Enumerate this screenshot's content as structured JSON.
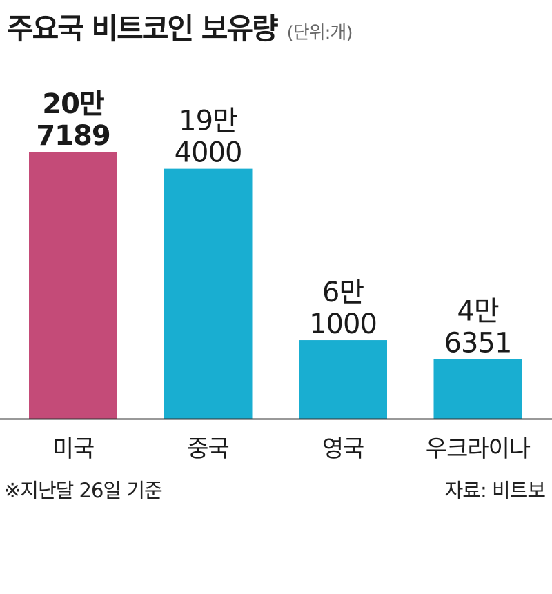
{
  "chart_data": {
    "type": "bar",
    "title": "주요국 비트코인 보유량",
    "unit_label": "(단위:개)",
    "categories": [
      "미국",
      "중국",
      "영국",
      "우크라이나"
    ],
    "values": [
      207189,
      194000,
      61000,
      46351
    ],
    "value_labels": [
      [
        "20만",
        "7189"
      ],
      [
        "19만",
        "4000"
      ],
      [
        "6만",
        "1000"
      ],
      [
        "4만",
        "6351"
      ]
    ],
    "bar_colors": [
      "#c44b78",
      "#19aed1",
      "#19aed1",
      "#19aed1"
    ],
    "label_weights": [
      "bold",
      "normal",
      "normal",
      "normal"
    ],
    "axis_color": "#333333",
    "ylim": [
      0,
      207189
    ],
    "grid": false,
    "legend": "none"
  },
  "footnote": "※지난달 26일 기준",
  "source": "자료: 비트보"
}
